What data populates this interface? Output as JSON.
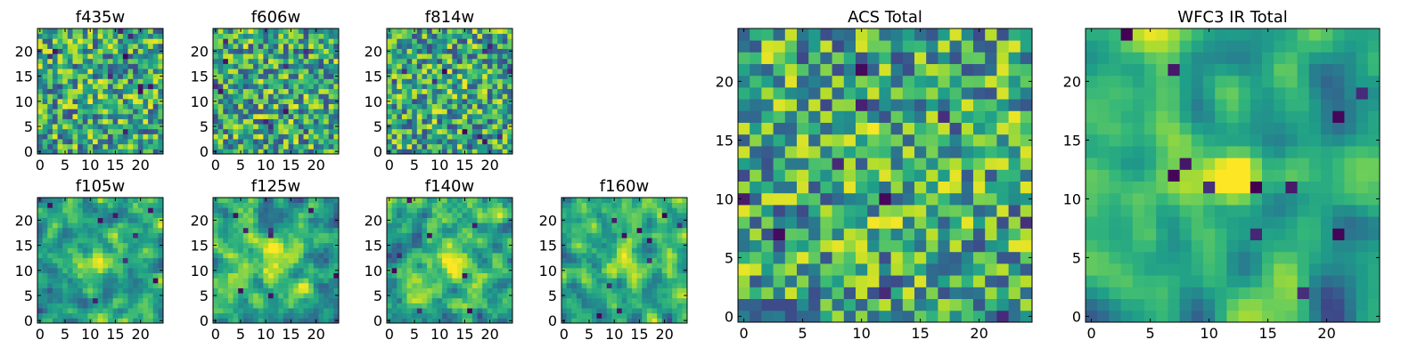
{
  "figure": {
    "colormap": "viridis",
    "colors": {
      "low": "#440154",
      "mid": "#21918c",
      "high": "#fde725",
      "frame": "#000000",
      "background": "#ffffff"
    }
  },
  "chart_data": [
    {
      "id": "f435w",
      "type": "heatmap",
      "title": "f435w",
      "grid_size": 25,
      "xticks": [
        0,
        5,
        10,
        15,
        20
      ],
      "yticks": [
        0,
        5,
        10,
        15,
        20
      ],
      "xlim": [
        0,
        24
      ],
      "ylim": [
        0,
        24
      ],
      "seed": 11,
      "smooth": 0,
      "peak": 0.05,
      "sigma": 3.0,
      "dark_spots": 10
    },
    {
      "id": "f606w",
      "type": "heatmap",
      "title": "f606w",
      "grid_size": 25,
      "xticks": [
        0,
        5,
        10,
        15,
        20
      ],
      "yticks": [
        0,
        5,
        10,
        15,
        20
      ],
      "xlim": [
        0,
        24
      ],
      "ylim": [
        0,
        24
      ],
      "seed": 23,
      "smooth": 0,
      "peak": 0.05,
      "sigma": 3.0,
      "dark_spots": 9
    },
    {
      "id": "f814w",
      "type": "heatmap",
      "title": "f814w",
      "grid_size": 25,
      "xticks": [
        0,
        5,
        10,
        15,
        20
      ],
      "yticks": [
        0,
        5,
        10,
        15,
        20
      ],
      "xlim": [
        0,
        24
      ],
      "ylim": [
        0,
        24
      ],
      "seed": 37,
      "smooth": 0,
      "peak": 0.05,
      "sigma": 3.0,
      "dark_spots": 10
    },
    {
      "id": "f105w",
      "type": "heatmap",
      "title": "f105w",
      "grid_size": 25,
      "xticks": [
        0,
        5,
        10,
        15,
        20
      ],
      "yticks": [
        0,
        5,
        10,
        15,
        20
      ],
      "xlim": [
        0,
        24
      ],
      "ylim": [
        0,
        24
      ],
      "seed": 41,
      "smooth": 1,
      "peak": 0.3,
      "sigma": 3.0,
      "dark_spots": 8
    },
    {
      "id": "f125w",
      "type": "heatmap",
      "title": "f125w",
      "grid_size": 25,
      "xticks": [
        0,
        5,
        10,
        15,
        20
      ],
      "yticks": [
        0,
        5,
        10,
        15,
        20
      ],
      "xlim": [
        0,
        24
      ],
      "ylim": [
        0,
        24
      ],
      "seed": 53,
      "smooth": 1,
      "peak": 0.3,
      "sigma": 3.0,
      "dark_spots": 8
    },
    {
      "id": "f140w",
      "type": "heatmap",
      "title": "f140w",
      "grid_size": 25,
      "xticks": [
        0,
        5,
        10,
        15,
        20
      ],
      "yticks": [
        0,
        5,
        10,
        15,
        20
      ],
      "xlim": [
        0,
        24
      ],
      "ylim": [
        0,
        24
      ],
      "seed": 67,
      "smooth": 1,
      "peak": 0.3,
      "sigma": 3.0,
      "dark_spots": 8
    },
    {
      "id": "f160w",
      "type": "heatmap",
      "title": "f160w",
      "grid_size": 25,
      "xticks": [
        0,
        5,
        10,
        15,
        20
      ],
      "yticks": [
        0,
        5,
        10,
        15,
        20
      ],
      "xlim": [
        0,
        24
      ],
      "ylim": [
        0,
        24
      ],
      "seed": 79,
      "smooth": 1,
      "peak": 0.3,
      "sigma": 2.5,
      "dark_spots": 10
    },
    {
      "id": "acs-total",
      "type": "heatmap",
      "title": "ACS Total",
      "grid_size": 25,
      "xticks": [
        0,
        5,
        10,
        15,
        20
      ],
      "yticks": [
        0,
        5,
        10,
        15,
        20
      ],
      "xlim": [
        0,
        24
      ],
      "ylim": [
        0,
        24
      ],
      "seed": 97,
      "smooth": 0,
      "peak": 0.05,
      "sigma": 3.0,
      "dark_spots": 10
    },
    {
      "id": "wfc3-ir-total",
      "type": "heatmap",
      "title": "WFC3 IR Total",
      "grid_size": 25,
      "xticks": [
        0,
        5,
        10,
        15,
        20
      ],
      "yticks": [
        0,
        5,
        10,
        15,
        20
      ],
      "xlim": [
        0,
        24
      ],
      "ylim": [
        0,
        24
      ],
      "seed": 131,
      "smooth": 2,
      "peak": 0.65,
      "sigma": 1.6,
      "dark_spots": 12
    }
  ]
}
